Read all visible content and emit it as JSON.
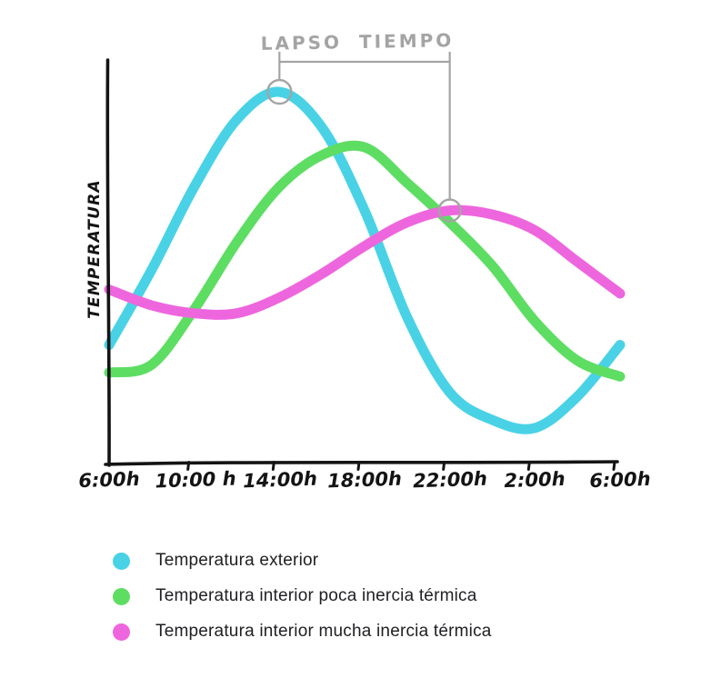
{
  "page": {
    "background": "#ffffff"
  },
  "axis": {
    "color": "#141414",
    "annotation_color": "#a4a4a4"
  },
  "annotation": {
    "label": "LAPSO TIEMPO",
    "color": "#a4a4a4",
    "from_series": "Temperatura exterior",
    "from_hour": 14,
    "to_series": "Temperatura interior mucha inercia térmica",
    "to_hour": 22
  },
  "chart_data": {
    "type": "line",
    "title": "",
    "xlabel": "",
    "ylabel": "TEMPERATURA",
    "grid": false,
    "legend_position": "bottom-left",
    "x_tick_labels": [
      "6:00h",
      "10:00 h",
      "14:00h",
      "18:00h",
      "22:00h",
      "2:00h",
      "6:00h"
    ],
    "x_hours": [
      6,
      8,
      10,
      12,
      14,
      16,
      18,
      20,
      22,
      24,
      26,
      28,
      30
    ],
    "x_range_hours": [
      6,
      30
    ],
    "y_scale_note": "no numeric y scale shown; values are relative temperature on a 0-100 scale estimated from the drawing",
    "series": [
      {
        "name": "Temperatura exterior",
        "color": "#49d2e6",
        "peak_hour": 14,
        "trough_hour": 26,
        "values": [
          30,
          49,
          70,
          87,
          94,
          85,
          64,
          37,
          18,
          11,
          9,
          17,
          30
        ]
      },
      {
        "name": "Temperatura interior poca inercia térmica",
        "color": "#5edd63",
        "peak_hour": 18,
        "values": [
          23,
          25,
          39,
          56,
          70,
          78,
          80,
          71,
          61,
          50,
          36,
          26,
          22
        ]
      },
      {
        "name": "Temperatura interior mucha inercia térmica",
        "color": "#ee66de",
        "peak_hour": 22,
        "values": [
          44,
          40,
          38,
          38,
          42,
          48,
          55,
          61,
          64,
          63,
          59,
          51,
          43
        ]
      }
    ],
    "annotations": [
      {
        "label": "LAPSO TIEMPO",
        "type": "time-lapse bracket with circled peaks",
        "from": "peak of Temperatura exterior (14:00h)",
        "to": "peak of Temperatura interior mucha inercia térmica (22:00h)"
      }
    ]
  },
  "legend": {
    "items": [
      {
        "label": "Temperatura exterior",
        "color": "#49d2e6"
      },
      {
        "label": "Temperatura interior poca inercia térmica",
        "color": "#5edd63"
      },
      {
        "label": "Temperatura interior mucha inercia térmica",
        "color": "#ee66de"
      }
    ]
  }
}
